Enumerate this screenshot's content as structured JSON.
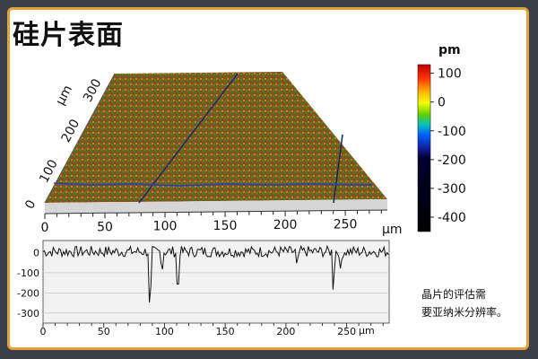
{
  "title": "硅片表面",
  "caption_line1": "晶片的评估需",
  "caption_line2": "要亚纳米分辨率。",
  "surface_plot": {
    "axis_unit": "µm",
    "x_ticks": [
      "0",
      "50",
      "100",
      "150",
      "200",
      "250"
    ],
    "y_ticks": [
      "0",
      "100",
      "200",
      "300"
    ],
    "y_label": "µm"
  },
  "colorbar": {
    "unit": "pm",
    "ticks": [
      "100",
      "0",
      "-100",
      "-200",
      "-300",
      "-400"
    ],
    "range": [
      -450,
      130
    ]
  },
  "profile_plot": {
    "x_ticks": [
      "0",
      "50",
      "100",
      "150",
      "200",
      "250"
    ],
    "x_unit_label": "µm",
    "y_ticks": [
      "0",
      "-100",
      "-200",
      "-300"
    ],
    "xlim": [
      0,
      285
    ],
    "ylim": [
      -350,
      60
    ]
  },
  "colors": {
    "border": "#e2a33b",
    "background": "#3b3f4a",
    "profile_line": "#1f3a8a"
  }
}
